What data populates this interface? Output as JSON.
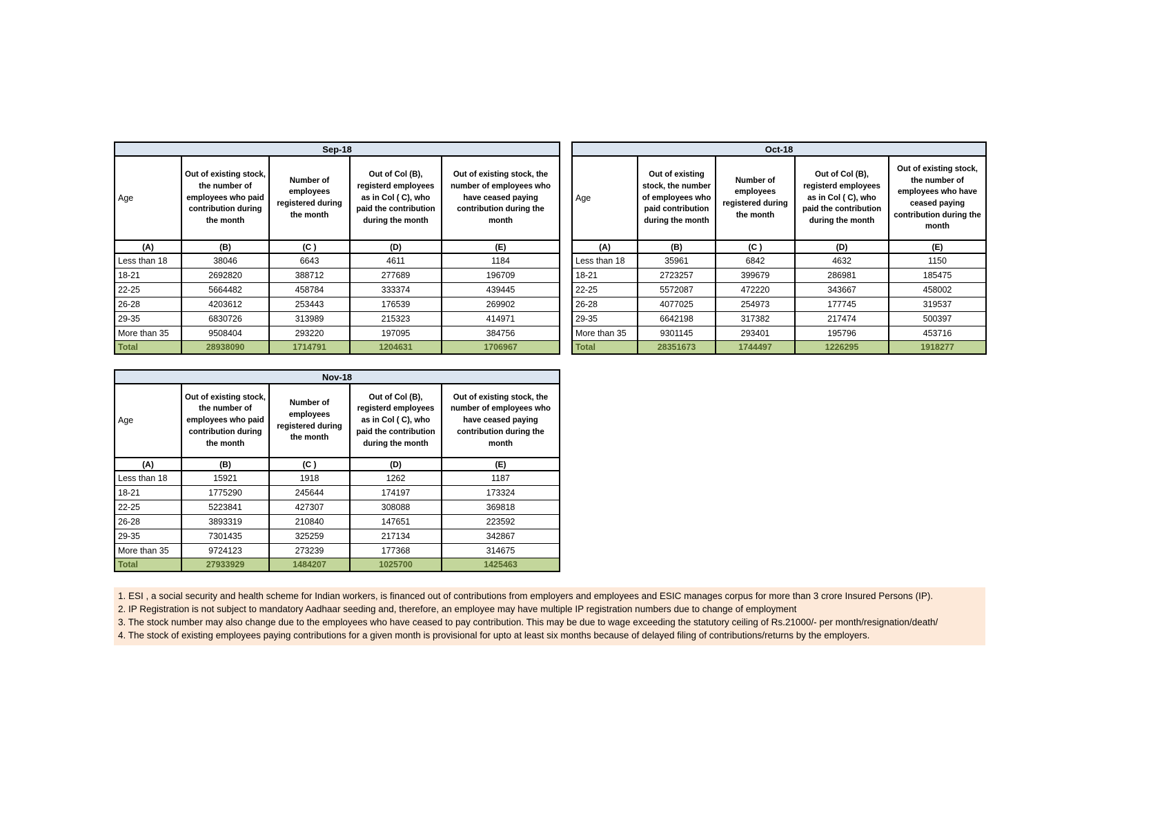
{
  "columns": {
    "a_label": "Age",
    "b": "Out of existing stock, the number of employees who paid contribution during the month",
    "c": "Number of employees registered during the month",
    "d": "Out of Col (B), registerd employees as in Col ( C), who paid the contribution during the month",
    "e": "Out of existing stock, the number of employees who have ceased paying contribution during the month",
    "letters": [
      "(A)",
      "(B)",
      "(C )",
      "(D)",
      "(E)"
    ]
  },
  "tables": [
    {
      "month": "Sep-18",
      "rows": [
        [
          "Less than 18",
          "38046",
          "6643",
          "4611",
          "1184"
        ],
        [
          "18-21",
          "2692820",
          "388712",
          "277689",
          "196709"
        ],
        [
          "22-25",
          "5664482",
          "458784",
          "333374",
          "439445"
        ],
        [
          "26-28",
          "4203612",
          "253443",
          "176539",
          "269902"
        ],
        [
          "29-35",
          "6830726",
          "313989",
          "215323",
          "414971"
        ],
        [
          "More than 35",
          "9508404",
          "293220",
          "197095",
          "384756"
        ]
      ],
      "total": [
        "Total",
        "28938090",
        "1714791",
        "1204631",
        "1706967"
      ]
    },
    {
      "month": "Oct-18",
      "rows": [
        [
          "Less than 18",
          "35961",
          "6842",
          "4632",
          "1150"
        ],
        [
          "18-21",
          "2723257",
          "399679",
          "286981",
          "185475"
        ],
        [
          "22-25",
          "5572087",
          "472220",
          "343667",
          "458002"
        ],
        [
          "26-28",
          "4077025",
          "254973",
          "177745",
          "319537"
        ],
        [
          "29-35",
          "6642198",
          "317382",
          "217474",
          "500397"
        ],
        [
          "More than 35",
          "9301145",
          "293401",
          "195796",
          "453716"
        ]
      ],
      "total": [
        "Total",
        "28351673",
        "1744497",
        "1226295",
        "1918277"
      ]
    },
    {
      "month": "Nov-18",
      "rows": [
        [
          "Less than 18",
          "15921",
          "1918",
          "1262",
          "1187"
        ],
        [
          "18-21",
          "1775290",
          "245644",
          "174197",
          "173324"
        ],
        [
          "22-25",
          "5223841",
          "427307",
          "308088",
          "369818"
        ],
        [
          "26-28",
          "3893319",
          "210840",
          "147651",
          "223592"
        ],
        [
          "29-35",
          "7301435",
          "325259",
          "217134",
          "342867"
        ],
        [
          "More than 35",
          "9724123",
          "273239",
          "177368",
          "314675"
        ]
      ],
      "total": [
        "Total",
        "27933929",
        "1484207",
        "1025700",
        "1425463"
      ]
    }
  ],
  "notes": [
    "1. ESI , a social security and health scheme for Indian workers, is financed out of contributions from employers and employees and ESIC manages corpus for more than 3 crore Insured Persons (IP).",
    "2. IP Registration is not subject to mandatory Aadhaar seeding and, therefore, an employee may have multiple IP registration numbers due to change of employment",
    "3. The stock number may also change due to the employees who have ceased to pay contribution. This may  be due to wage exceeding the statutory ceiling of  Rs.21000/- per month/resignation/death/",
    "4. The stock of existing employees paying contributions for a given month is provisional for upto at least six months because of delayed filing of contributions/returns by the employers."
  ],
  "colors": {
    "month_header_bg": "#dbe5f1",
    "total_row_bg": "#c3d69b",
    "total_text": "#4e6128",
    "notes_bg": "#fde9d9",
    "border": "#000000"
  }
}
